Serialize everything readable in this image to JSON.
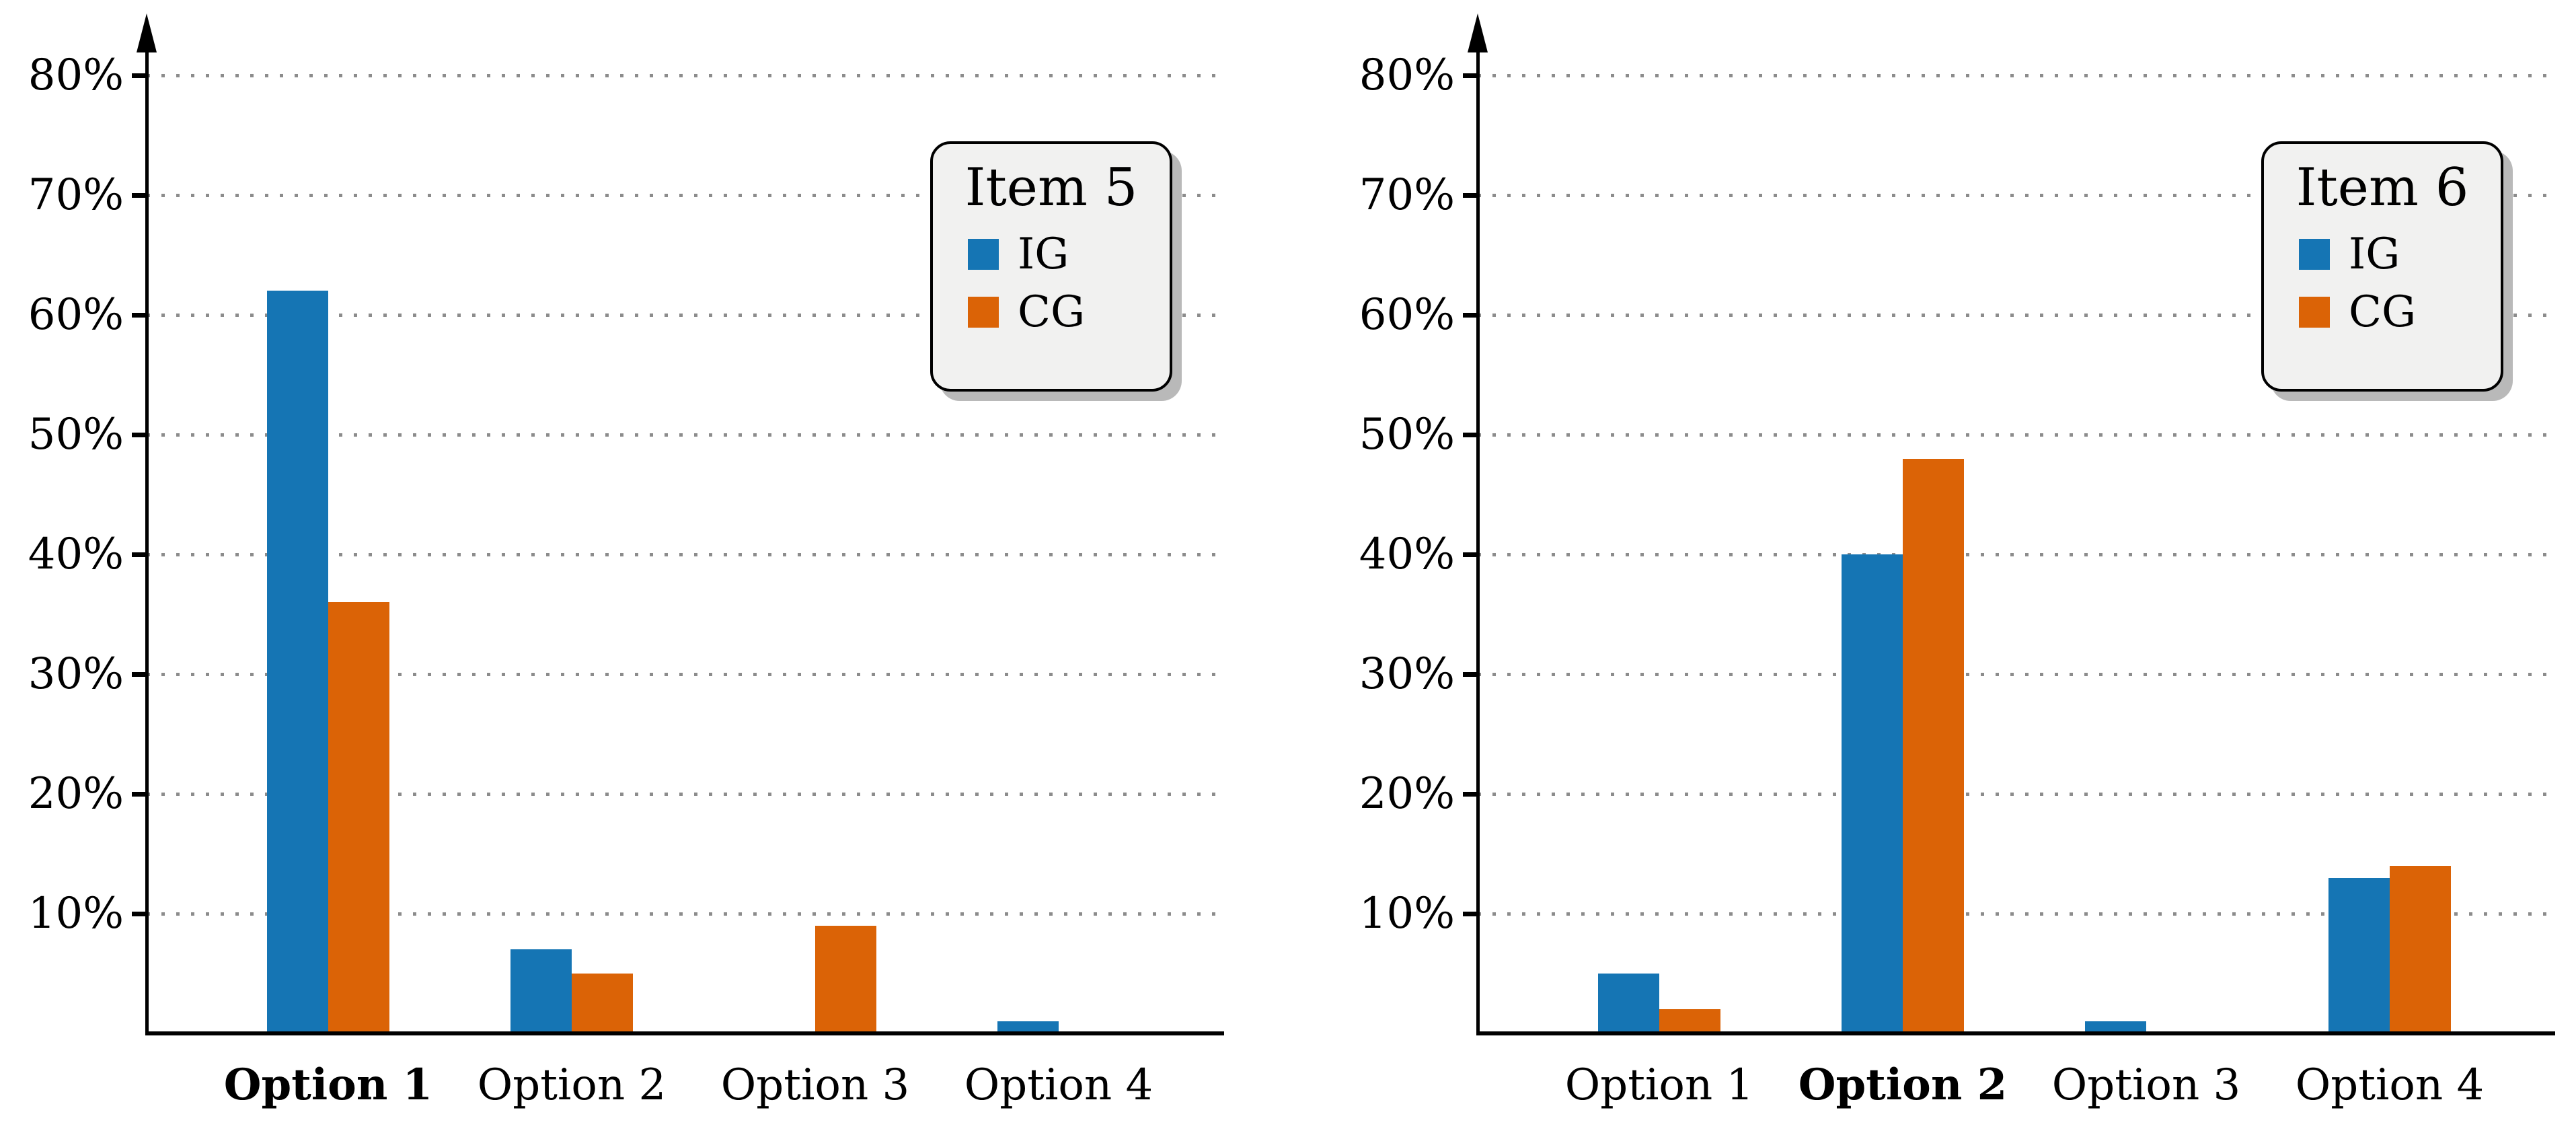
{
  "colors": {
    "ig_blue": "#1575b4",
    "cg_orange": "#db6306",
    "grid_gray": "#8c8c8c",
    "axis_black": "#000000",
    "legend_bg": "#f1f1f0",
    "legend_shadow": "#b9b9b9"
  },
  "y_axis": {
    "tick_labels": [
      "10%",
      "20%",
      "30%",
      "40%",
      "50%",
      "60%",
      "70%",
      "80%"
    ],
    "unit": "%"
  },
  "chart_data": [
    {
      "type": "bar",
      "title": "Item 5",
      "categories": [
        "Option 1",
        "Option 2",
        "Option 3",
        "Option 4"
      ],
      "bold_category": "Option 1",
      "series": [
        {
          "name": "IG",
          "color_key": "ig_blue",
          "values": [
            62,
            7,
            0,
            1
          ]
        },
        {
          "name": "CG",
          "color_key": "cg_orange",
          "values": [
            36,
            5,
            9,
            0
          ]
        }
      ],
      "xlabel": "",
      "ylabel": "",
      "ylim": [
        0,
        84
      ],
      "ytick_percents": [
        10,
        20,
        30,
        40,
        50,
        60,
        70,
        80
      ],
      "grid": "dotted-horizontal",
      "legend_position": "top-right"
    },
    {
      "type": "bar",
      "title": "Item 6",
      "categories": [
        "Option 1",
        "Option 2",
        "Option 3",
        "Option 4"
      ],
      "bold_category": "Option 2",
      "series": [
        {
          "name": "IG",
          "color_key": "ig_blue",
          "values": [
            5,
            40,
            1,
            13
          ]
        },
        {
          "name": "CG",
          "color_key": "cg_orange",
          "values": [
            2,
            48,
            0,
            14
          ]
        }
      ],
      "xlabel": "",
      "ylabel": "",
      "ylim": [
        0,
        84
      ],
      "ytick_percents": [
        10,
        20,
        30,
        40,
        50,
        60,
        70,
        80
      ],
      "grid": "dotted-horizontal",
      "legend_position": "top-right"
    }
  ]
}
